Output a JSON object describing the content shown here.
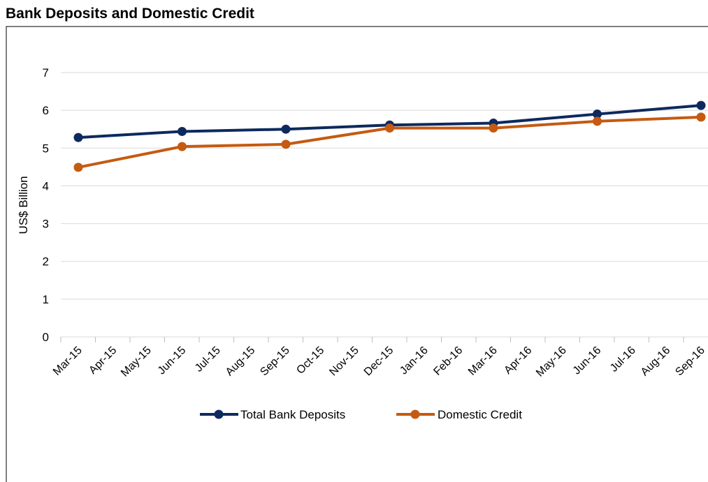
{
  "chart_data": {
    "type": "line",
    "title": "Bank Deposits and Domestic Credit",
    "ylabel": "US$ Billion",
    "xlabel": "",
    "ylim": [
      0,
      7
    ],
    "yticks": [
      0,
      1,
      2,
      3,
      4,
      5,
      6,
      7
    ],
    "grid": true,
    "legend_position": "bottom",
    "categories": [
      "Mar-15",
      "Apr-15",
      "May-15",
      "Jun-15",
      "Jul-15",
      "Aug-15",
      "Sep-15",
      "Oct-15",
      "Nov-15",
      "Dec-15",
      "Jan-16",
      "Feb-16",
      "Mar-16",
      "Apr-16",
      "May-16",
      "Jun-16",
      "Jul-16",
      "Aug-16",
      "Sep-16"
    ],
    "series": [
      {
        "name": "Total Bank Deposits",
        "color": "#0d2a5e",
        "points": [
          {
            "x": "Mar-15",
            "y": 5.28
          },
          {
            "x": "Jun-15",
            "y": 5.44
          },
          {
            "x": "Sep-15",
            "y": 5.5
          },
          {
            "x": "Dec-15",
            "y": 5.61
          },
          {
            "x": "Mar-16",
            "y": 5.66
          },
          {
            "x": "Jun-16",
            "y": 5.9
          },
          {
            "x": "Sep-16",
            "y": 6.13
          }
        ]
      },
      {
        "name": "Domestic Credit",
        "color": "#c55a11",
        "points": [
          {
            "x": "Mar-15",
            "y": 4.49
          },
          {
            "x": "Jun-15",
            "y": 5.04
          },
          {
            "x": "Sep-15",
            "y": 5.1
          },
          {
            "x": "Dec-15",
            "y": 5.53
          },
          {
            "x": "Mar-16",
            "y": 5.53
          },
          {
            "x": "Jun-16",
            "y": 5.71
          },
          {
            "x": "Sep-16",
            "y": 5.82
          }
        ]
      }
    ]
  }
}
